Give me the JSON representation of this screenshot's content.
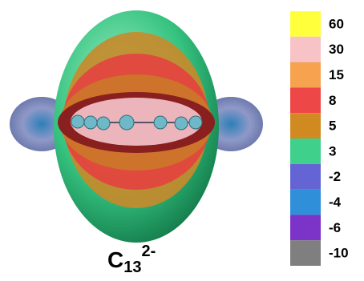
{
  "figure": {
    "formula": {
      "element": "C",
      "subscript": "13",
      "superscript": "2-"
    },
    "legend": [
      {
        "label": "60",
        "color": "#ffff3c"
      },
      {
        "label": "30",
        "color": "#f8c3c6"
      },
      {
        "label": "15",
        "color": "#f7a24e"
      },
      {
        "label": "8",
        "color": "#ee4747"
      },
      {
        "label": "5",
        "color": "#d18a22"
      },
      {
        "label": "3",
        "color": "#3fd08c"
      },
      {
        "label": "-2",
        "color": "#6464d4"
      },
      {
        "label": "-4",
        "color": "#2f8fd8"
      },
      {
        "label": "-6",
        "color": "#7b33c8"
      },
      {
        "label": "-10",
        "color": "#7f7f7f"
      }
    ]
  }
}
